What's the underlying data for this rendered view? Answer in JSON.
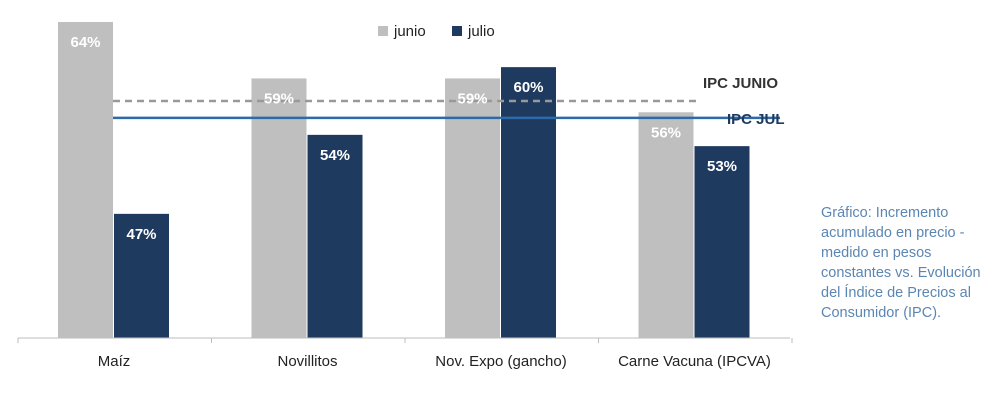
{
  "chart_data": {
    "type": "bar",
    "categories": [
      "Maíz",
      "Novillitos",
      "Nov. Expo (gancho)",
      "Carne Vacuna (IPCVA)"
    ],
    "series": [
      {
        "name": "junio",
        "color": "#bfbfbf",
        "values": [
          64,
          59,
          59,
          56
        ],
        "labels": [
          "64%",
          "59%",
          "59%",
          "56%"
        ]
      },
      {
        "name": "julio",
        "color": "#1f3a5f",
        "values": [
          47,
          54,
          60,
          53
        ],
        "labels": [
          "47%",
          "54%",
          "60%",
          "53%"
        ]
      }
    ],
    "reference_lines": [
      {
        "label": "IPC JUNIO",
        "value": 57,
        "style": "dashed",
        "color": "#999999",
        "text_color": "#333333"
      },
      {
        "label": "IPC JUL",
        "value": 55.5,
        "style": "solid",
        "color": "#2e6aa8",
        "text_color": "#1f3a5f"
      }
    ],
    "ylim": [
      36,
      66
    ],
    "grid": false,
    "legend_position": "top-center"
  },
  "caption": "Gráfico: Incremento acumulado en precio -medido en pesos constantes vs. Evolución del Índice de Precios al Consumidor (IPC)."
}
